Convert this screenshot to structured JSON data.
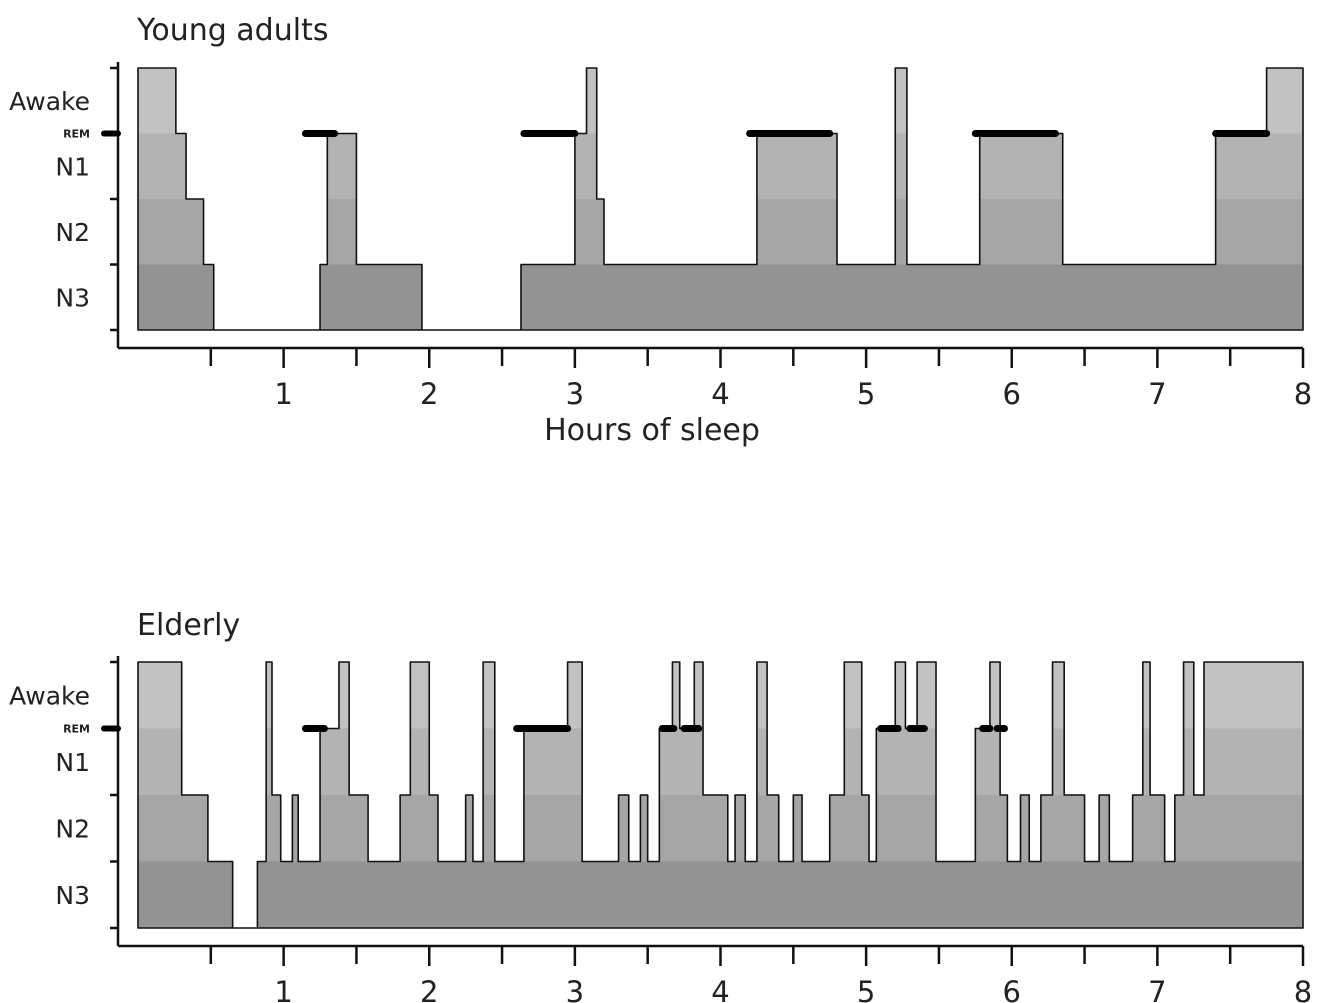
{
  "chart_data": [
    {
      "type": "area",
      "title": "Young adults",
      "xlabel": "Hours of sleep",
      "ylabel": "",
      "xlim": [
        0,
        8
      ],
      "x_ticks": [
        1,
        2,
        3,
        4,
        5,
        6,
        7,
        8
      ],
      "y_categories": [
        "Awake",
        "REM",
        "N1",
        "N2",
        "N3"
      ],
      "hypnogram": [
        [
          0.15,
          "Awake"
        ],
        [
          0.26,
          "N1"
        ],
        [
          0.33,
          "N2"
        ],
        [
          0.45,
          "N3"
        ],
        [
          0.52,
          "Deep"
        ],
        [
          1.25,
          "N3"
        ],
        [
          1.3,
          "N1"
        ],
        [
          1.5,
          "N3"
        ],
        [
          1.95,
          "Deep"
        ],
        [
          2.63,
          "N3"
        ],
        [
          3.0,
          "N1"
        ],
        [
          3.08,
          "Awake"
        ],
        [
          3.15,
          "N2"
        ],
        [
          3.2,
          "N3"
        ],
        [
          4.25,
          "N1"
        ],
        [
          4.8,
          "N3"
        ],
        [
          5.2,
          "Awake"
        ],
        [
          5.28,
          "N3"
        ],
        [
          5.78,
          "N1"
        ],
        [
          6.35,
          "N3"
        ],
        [
          7.4,
          "N1"
        ],
        [
          7.75,
          "Awake"
        ],
        [
          8.0,
          "Awake"
        ]
      ],
      "rem_periods": [
        [
          1.15,
          1.35
        ],
        [
          2.65,
          3.0
        ],
        [
          4.2,
          4.75
        ],
        [
          5.75,
          6.3
        ],
        [
          7.4,
          7.75
        ]
      ]
    },
    {
      "type": "area",
      "title": "Elderly",
      "xlabel": "",
      "ylabel": "",
      "xlim": [
        0,
        8
      ],
      "x_ticks": [
        1,
        2,
        3,
        4,
        5,
        6,
        7,
        8
      ],
      "y_categories": [
        "Awake",
        "REM",
        "N1",
        "N2",
        "N3"
      ],
      "hypnogram": [
        [
          0.15,
          "Awake"
        ],
        [
          0.3,
          "N2"
        ],
        [
          0.48,
          "N3"
        ],
        [
          0.65,
          "Deep"
        ],
        [
          0.82,
          "N3"
        ],
        [
          0.88,
          "Awake"
        ],
        [
          0.92,
          "N2"
        ],
        [
          0.98,
          "N3"
        ],
        [
          1.06,
          "N2"
        ],
        [
          1.1,
          "N3"
        ],
        [
          1.25,
          "N1"
        ],
        [
          1.38,
          "Awake"
        ],
        [
          1.45,
          "N2"
        ],
        [
          1.58,
          "N3"
        ],
        [
          1.8,
          "N2"
        ],
        [
          1.87,
          "Awake"
        ],
        [
          2.0,
          "N2"
        ],
        [
          2.06,
          "N3"
        ],
        [
          2.25,
          "N2"
        ],
        [
          2.3,
          "N3"
        ],
        [
          2.37,
          "Awake"
        ],
        [
          2.45,
          "N3"
        ],
        [
          2.65,
          "N1"
        ],
        [
          2.95,
          "Awake"
        ],
        [
          3.05,
          "N3"
        ],
        [
          3.3,
          "N2"
        ],
        [
          3.37,
          "N3"
        ],
        [
          3.45,
          "N2"
        ],
        [
          3.5,
          "N3"
        ],
        [
          3.58,
          "N1"
        ],
        [
          3.67,
          "Awake"
        ],
        [
          3.72,
          "N1"
        ],
        [
          3.82,
          "Awake"
        ],
        [
          3.88,
          "N2"
        ],
        [
          4.05,
          "N3"
        ],
        [
          4.1,
          "N2"
        ],
        [
          4.17,
          "N3"
        ],
        [
          4.25,
          "Awake"
        ],
        [
          4.32,
          "N2"
        ],
        [
          4.4,
          "N3"
        ],
        [
          4.5,
          "N2"
        ],
        [
          4.56,
          "N3"
        ],
        [
          4.75,
          "N2"
        ],
        [
          4.85,
          "Awake"
        ],
        [
          4.97,
          "N2"
        ],
        [
          5.02,
          "N3"
        ],
        [
          5.07,
          "N1"
        ],
        [
          5.2,
          "Awake"
        ],
        [
          5.27,
          "N1"
        ],
        [
          5.35,
          "Awake"
        ],
        [
          5.48,
          "N3"
        ],
        [
          5.75,
          "N1"
        ],
        [
          5.85,
          "Awake"
        ],
        [
          5.92,
          "N2"
        ],
        [
          5.97,
          "N3"
        ],
        [
          6.06,
          "N2"
        ],
        [
          6.12,
          "N3"
        ],
        [
          6.2,
          "N2"
        ],
        [
          6.28,
          "Awake"
        ],
        [
          6.36,
          "N2"
        ],
        [
          6.5,
          "N3"
        ],
        [
          6.6,
          "N2"
        ],
        [
          6.67,
          "N3"
        ],
        [
          6.83,
          "N2"
        ],
        [
          6.9,
          "Awake"
        ],
        [
          6.95,
          "N2"
        ],
        [
          7.05,
          "N3"
        ],
        [
          7.12,
          "N2"
        ],
        [
          7.18,
          "Awake"
        ],
        [
          7.25,
          "N2"
        ],
        [
          7.32,
          "Awake"
        ],
        [
          8.0,
          "Awake"
        ]
      ],
      "rem_periods": [
        [
          1.15,
          1.28
        ],
        [
          2.6,
          2.95
        ],
        [
          3.6,
          3.68
        ],
        [
          3.75,
          3.85
        ],
        [
          5.1,
          5.22
        ],
        [
          5.3,
          5.4
        ],
        [
          5.8,
          5.85
        ],
        [
          5.9,
          5.95
        ]
      ]
    }
  ]
}
